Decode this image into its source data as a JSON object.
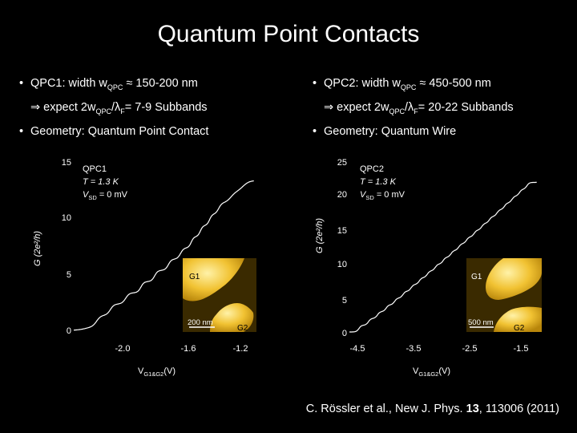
{
  "title": "Quantum Point Contacts",
  "left_bullets": {
    "b1_a": "QPC1: width w",
    "b1_sub": "QPC",
    "b1_b": " ≈ 150-200 nm",
    "b2_a": "⇒ expect 2w",
    "b2_sub1": "QPC",
    "b2_b": "/λ",
    "b2_sub2": "F",
    "b2_c": "= 7-9 Subbands",
    "b3": "Geometry: Quantum Point Contact"
  },
  "right_bullets": {
    "b1_a": "QPC2: width w",
    "b1_sub": "QPC",
    "b1_b": " ≈ 450-500 nm",
    "b2_a": "⇒ expect 2w",
    "b2_sub1": "QPC",
    "b2_b": "/λ",
    "b2_sub2": "F",
    "b2_c": "= 20-22 Subbands",
    "b3": "Geometry: Quantum Wire"
  },
  "citation": {
    "pre": "C. Rössler et al., New J. Phys. ",
    "vol": "13",
    "post": ", 113006 (2011)"
  },
  "chart_data": [
    {
      "type": "line",
      "title": "",
      "legend": {
        "name": "QPC1",
        "temp": "T = 1.3 K",
        "bias": "V",
        "bias_sub": "SD",
        "bias_val": " = 0 mV"
      },
      "xlabel": "V",
      "xlabel_sub": "G1&G2",
      "xlabel_unit": "(V)",
      "ylabel": "G (2e²/h)",
      "xlim": [
        -2.3,
        -1.05
      ],
      "ylim": [
        0,
        15
      ],
      "xticks": [
        -2.0,
        -1.6,
        -1.2
      ],
      "xtick_labels": [
        "-2.0",
        "-1.6",
        "-1.2"
      ],
      "yticks": [
        0,
        5,
        10,
        15
      ],
      "ytick_labels": [
        "0",
        "5",
        "10",
        "15"
      ],
      "x_start": -2.3,
      "x_end": -1.12,
      "steps": [
        {
          "x": -2.15,
          "w": 0.04
        },
        {
          "x": -2.06,
          "w": 0.035
        },
        {
          "x": -1.96,
          "w": 0.035
        },
        {
          "x": -1.86,
          "w": 0.03
        },
        {
          "x": -1.77,
          "w": 0.03
        },
        {
          "x": -1.68,
          "w": 0.03
        },
        {
          "x": -1.6,
          "w": 0.03
        },
        {
          "x": -1.53,
          "w": 0.025
        },
        {
          "x": -1.47,
          "w": 0.025
        },
        {
          "x": -1.41,
          "w": 0.025
        },
        {
          "x": -1.35,
          "w": 0.03
        },
        {
          "x": -1.27,
          "w": 0.05
        },
        {
          "x": -1.19,
          "w": 0.06
        }
      ],
      "inset": {
        "g1": "G1",
        "g2": "G2",
        "scale": "200 nm"
      }
    },
    {
      "type": "line",
      "title": "",
      "legend": {
        "name": "QPC2",
        "temp": "T = 1.3 K",
        "bias": "V",
        "bias_sub": "SD",
        "bias_val": " = 0 mV"
      },
      "xlabel": "V",
      "xlabel_sub": "G1&G2",
      "xlabel_unit": "(V)",
      "ylabel": "G (2e²/h)",
      "xlim": [
        -5.0,
        -1.2
      ],
      "ylim": [
        0,
        25
      ],
      "xticks": [
        -4.5,
        -3.5,
        -2.5,
        -1.5
      ],
      "xtick_labels": [
        "-4.5",
        "-3.5",
        "-2.5",
        "-1.5"
      ],
      "yticks": [
        0,
        5,
        10,
        15,
        20,
        25
      ],
      "ytick_labels": [
        "0",
        "5",
        "10",
        "15",
        "20",
        "25"
      ],
      "x_start": -5.0,
      "x_end": -1.3,
      "step_count": 22,
      "inset": {
        "g1": "G1",
        "g2": "G2",
        "scale": "500 nm"
      }
    }
  ]
}
